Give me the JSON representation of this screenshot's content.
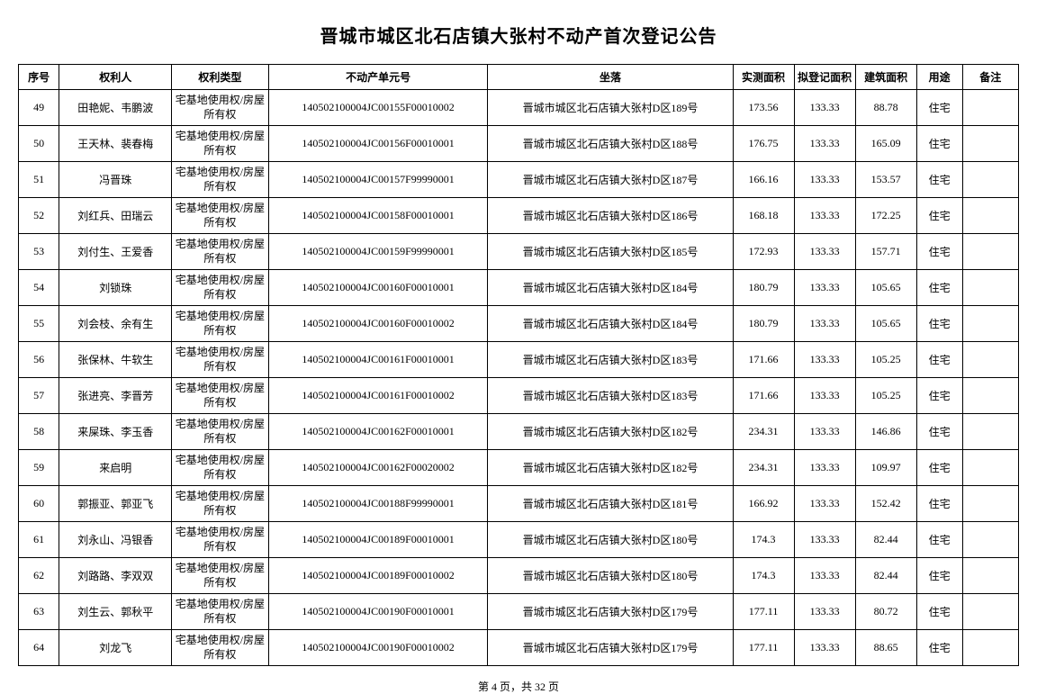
{
  "title": "晋城市城区北石店镇大张村不动产首次登记公告",
  "columns": [
    "序号",
    "权利人",
    "权利类型",
    "不动产单元号",
    "坐落",
    "实测面积",
    "拟登记面积",
    "建筑面积",
    "用途",
    "备注"
  ],
  "type_text": "宅基地使用权/房屋所有权",
  "use_text": "住宅",
  "rows": [
    {
      "seq": "49",
      "owner": "田艳妮、韦鹏波",
      "unit": "140502100004JC00155F00010002",
      "loc": "晋城市城区北石店镇大张村D区189号",
      "a1": "173.56",
      "a2": "133.33",
      "a3": "88.78"
    },
    {
      "seq": "50",
      "owner": "王天林、裴春梅",
      "unit": "140502100004JC00156F00010001",
      "loc": "晋城市城区北石店镇大张村D区188号",
      "a1": "176.75",
      "a2": "133.33",
      "a3": "165.09"
    },
    {
      "seq": "51",
      "owner": "冯晋珠",
      "unit": "140502100004JC00157F99990001",
      "loc": "晋城市城区北石店镇大张村D区187号",
      "a1": "166.16",
      "a2": "133.33",
      "a3": "153.57"
    },
    {
      "seq": "52",
      "owner": "刘红兵、田瑞云",
      "unit": "140502100004JC00158F00010001",
      "loc": "晋城市城区北石店镇大张村D区186号",
      "a1": "168.18",
      "a2": "133.33",
      "a3": "172.25"
    },
    {
      "seq": "53",
      "owner": "刘付生、王爱香",
      "unit": "140502100004JC00159F99990001",
      "loc": "晋城市城区北石店镇大张村D区185号",
      "a1": "172.93",
      "a2": "133.33",
      "a3": "157.71"
    },
    {
      "seq": "54",
      "owner": "刘锁珠",
      "unit": "140502100004JC00160F00010001",
      "loc": "晋城市城区北石店镇大张村D区184号",
      "a1": "180.79",
      "a2": "133.33",
      "a3": "105.65"
    },
    {
      "seq": "55",
      "owner": "刘会枝、余有生",
      "unit": "140502100004JC00160F00010002",
      "loc": "晋城市城区北石店镇大张村D区184号",
      "a1": "180.79",
      "a2": "133.33",
      "a3": "105.65"
    },
    {
      "seq": "56",
      "owner": "张保林、牛软生",
      "unit": "140502100004JC00161F00010001",
      "loc": "晋城市城区北石店镇大张村D区183号",
      "a1": "171.66",
      "a2": "133.33",
      "a3": "105.25"
    },
    {
      "seq": "57",
      "owner": "张进亮、李晋芳",
      "unit": "140502100004JC00161F00010002",
      "loc": "晋城市城区北石店镇大张村D区183号",
      "a1": "171.66",
      "a2": "133.33",
      "a3": "105.25"
    },
    {
      "seq": "58",
      "owner": "来屎珠、李玉香",
      "unit": "140502100004JC00162F00010001",
      "loc": "晋城市城区北石店镇大张村D区182号",
      "a1": "234.31",
      "a2": "133.33",
      "a3": "146.86"
    },
    {
      "seq": "59",
      "owner": "来启明",
      "unit": "140502100004JC00162F00020002",
      "loc": "晋城市城区北石店镇大张村D区182号",
      "a1": "234.31",
      "a2": "133.33",
      "a3": "109.97"
    },
    {
      "seq": "60",
      "owner": "郭振亚、郭亚飞",
      "unit": "140502100004JC00188F99990001",
      "loc": "晋城市城区北石店镇大张村D区181号",
      "a1": "166.92",
      "a2": "133.33",
      "a3": "152.42"
    },
    {
      "seq": "61",
      "owner": "刘永山、冯银香",
      "unit": "140502100004JC00189F00010001",
      "loc": "晋城市城区北石店镇大张村D区180号",
      "a1": "174.3",
      "a2": "133.33",
      "a3": "82.44"
    },
    {
      "seq": "62",
      "owner": "刘路路、李双双",
      "unit": "140502100004JC00189F00010002",
      "loc": "晋城市城区北石店镇大张村D区180号",
      "a1": "174.3",
      "a2": "133.33",
      "a3": "82.44"
    },
    {
      "seq": "63",
      "owner": "刘生云、郭秋平",
      "unit": "140502100004JC00190F00010001",
      "loc": "晋城市城区北石店镇大张村D区179号",
      "a1": "177.11",
      "a2": "133.33",
      "a3": "80.72"
    },
    {
      "seq": "64",
      "owner": "刘龙飞",
      "unit": "140502100004JC00190F00010002",
      "loc": "晋城市城区北石店镇大张村D区179号",
      "a1": "177.11",
      "a2": "133.33",
      "a3": "88.65"
    }
  ],
  "footer": "第 4 页，共 32 页"
}
